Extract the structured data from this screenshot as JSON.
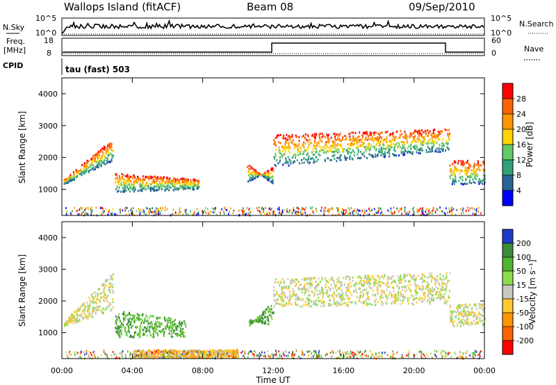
{
  "header": {
    "station": "Wallops Island (fitACF)",
    "beam": "Beam 08",
    "date": "09/Sep/2010"
  },
  "noise_panel": {
    "left_label": "N.Sky",
    "left_ticks": [
      "10^5",
      "10^0"
    ],
    "right_ticks": [
      "10^5",
      "10^0"
    ],
    "right_label": "N.Search"
  },
  "freq_panel": {
    "left_label_1": "Freq.",
    "left_label_2": "[MHz]",
    "left_ticks": [
      "18",
      "8"
    ],
    "right_ticks": [
      "60",
      "0"
    ],
    "right_label": "Nave"
  },
  "cpid": {
    "label": "CPID",
    "value": "tau (fast) 503"
  },
  "axes": {
    "ylabel": "Slant Range [km]",
    "xlabel": "Time UT",
    "xticks": [
      "00:00",
      "04:00",
      "08:00",
      "12:00",
      "16:00",
      "20:00",
      "00:00"
    ],
    "yticks": [
      "4000",
      "3000",
      "2000",
      "1000"
    ]
  },
  "chart_data": [
    {
      "type": "heatmap",
      "name": "power",
      "x_range_hours": [
        0,
        24
      ],
      "y_range_km": [
        180,
        4500
      ],
      "colorbar_label": "Power [dB]",
      "colorbar_ticks": [
        "28",
        "24",
        "20",
        "16",
        "12",
        "8",
        "4"
      ],
      "colorbar_colors": [
        "#ff0000",
        "#ff6400",
        "#ff9600",
        "#ffd200",
        "#64c864",
        "#32a078",
        "#286496",
        "#0000ff"
      ],
      "bands": [
        {
          "t0": 0.1,
          "t1": 2.9,
          "r0": 1150,
          "r1": 1300,
          "r0e": 1900,
          "r1e": 2600,
          "level": 6
        },
        {
          "t0": 3.0,
          "t1": 7.8,
          "r0": 900,
          "r1": 1500,
          "r0e": 1000,
          "r1e": 1300,
          "level": 5
        },
        {
          "t0": 10.5,
          "t1": 12.0,
          "r0": 1800,
          "r1": 1200,
          "r0e": 1150,
          "r1e": 1700,
          "level": 5
        },
        {
          "t0": 12.0,
          "t1": 22.0,
          "r0": 1700,
          "r1": 2700,
          "r0e": 2200,
          "r1e": 2900,
          "level": 4
        },
        {
          "t0": 22.0,
          "t1": 24.0,
          "r0": 1150,
          "r1": 1900,
          "r0e": 1150,
          "r1e": 1900,
          "level": 5
        }
      ]
    },
    {
      "type": "heatmap",
      "name": "velocity",
      "x_range_hours": [
        0,
        24
      ],
      "y_range_km": [
        180,
        4500
      ],
      "colorbar_label": "Velocity [m s⁻¹]",
      "colorbar_ticks": [
        "200",
        "100",
        "50",
        "15",
        "-15",
        "-50",
        "-100",
        "-200"
      ],
      "colorbar_colors": [
        "#1e3cc8",
        "#3c8c3c",
        "#50b432",
        "#8cdc50",
        "#c8c8c0",
        "#ffc832",
        "#ff9600",
        "#ff6400",
        "#ff0000"
      ],
      "bands": [
        {
          "t0": 0.1,
          "t1": 2.9,
          "r0": 1200,
          "r1": 1350,
          "r0e": 1700,
          "r1e": 2900,
          "level": 4
        },
        {
          "t0": 3.0,
          "t1": 7.0,
          "r0": 850,
          "r1": 1700,
          "r0e": 850,
          "r1e": 1400,
          "level": 2
        },
        {
          "t0": 10.6,
          "t1": 12.0,
          "r0": 1400,
          "r1": 1200,
          "r0e": 1200,
          "r1e": 2000,
          "level": 2
        },
        {
          "t0": 12.0,
          "t1": 22.0,
          "r0": 1800,
          "r1": 2700,
          "r0e": 1900,
          "r1e": 2900,
          "level": 4
        },
        {
          "t0": 22.0,
          "t1": 24.0,
          "r0": 1200,
          "r1": 1900,
          "r0e": 1200,
          "r1e": 1900,
          "level": 4
        },
        {
          "t0": 4.0,
          "t1": 10.0,
          "r0": 200,
          "r1": 450,
          "r0e": 200,
          "r1e": 450,
          "level": 5
        }
      ]
    }
  ]
}
